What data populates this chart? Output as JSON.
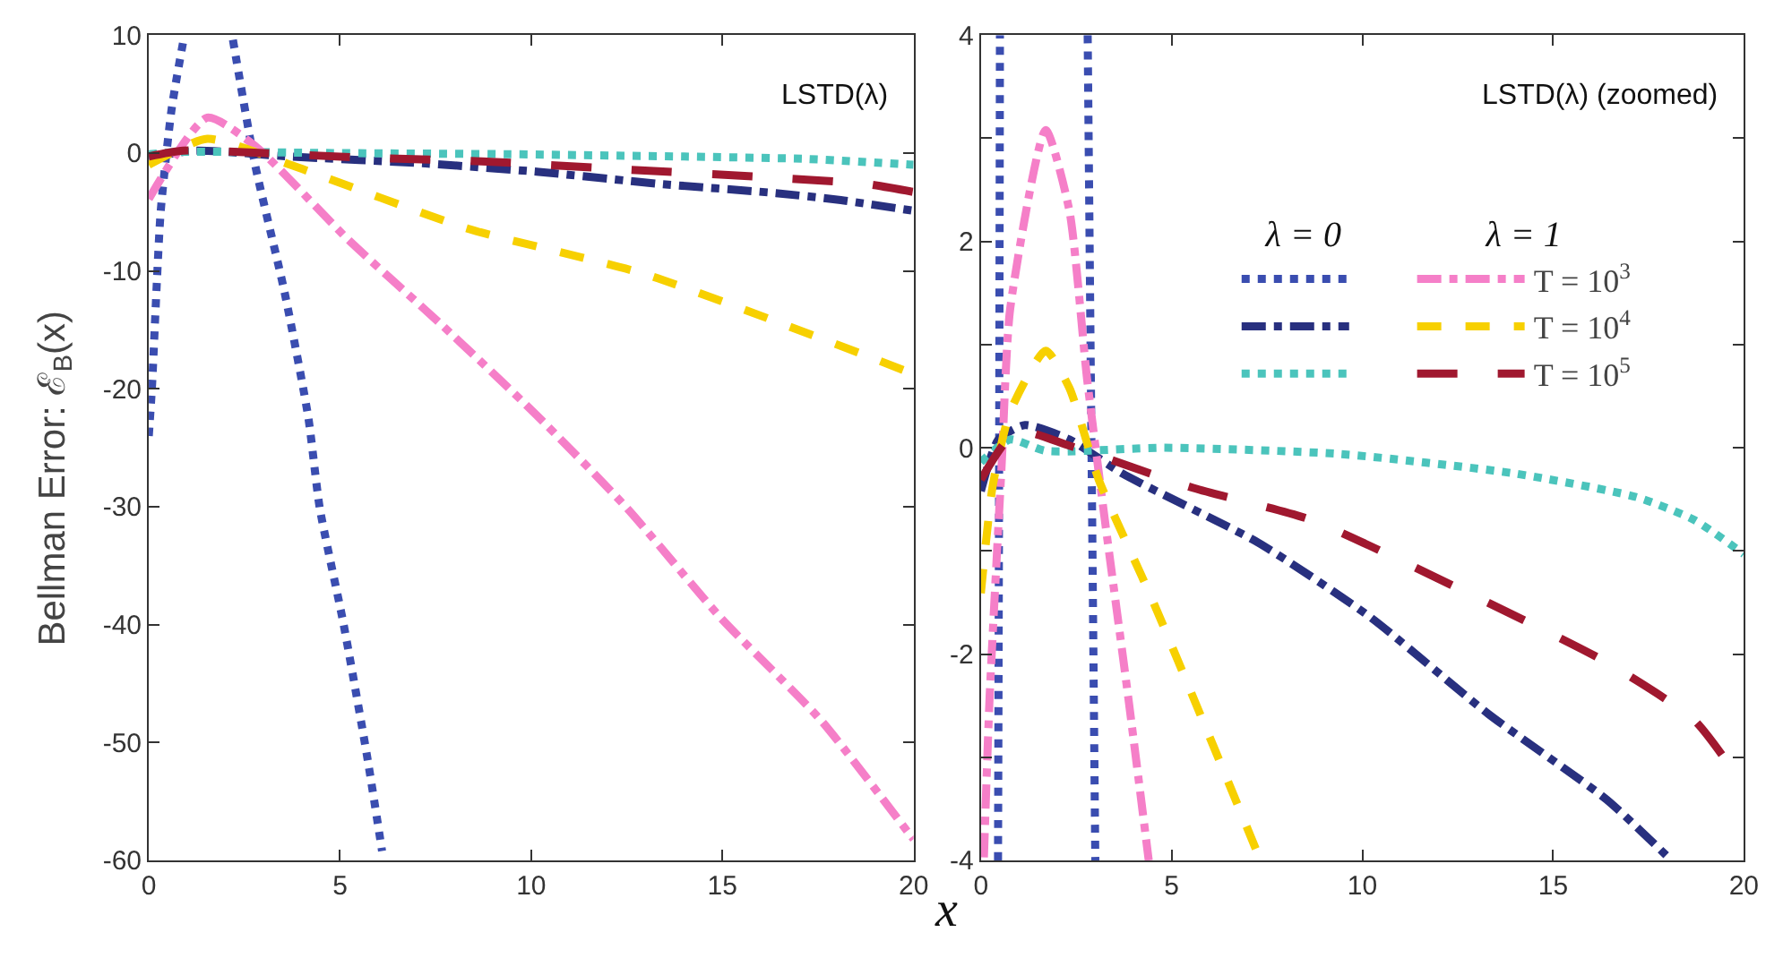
{
  "chart_data": [
    {
      "type": "line",
      "ylabel": "Bellman Error: ℰ$_{B}$(x)",
      "xlabel": "x",
      "annotations": [
        "LSTD(λ)"
      ],
      "xlim": [
        0,
        20
      ],
      "xticks": [
        0,
        5,
        10,
        15,
        20
      ],
      "ylim": [
        -60,
        10
      ],
      "yticks": [
        -60,
        -50,
        -40,
        -30,
        -20,
        -10,
        0,
        10
      ],
      "legend": false,
      "marker": "none",
      "series": [
        {
          "color": "#3a4db0",
          "line_style": "dotted",
          "x": [
            0,
            0.08,
            0.31,
            0.6,
            0.93,
            1.5,
            2.2,
            2.78,
            3.55,
            4.17,
            4.47,
            5.09,
            5.7,
            6.1
          ],
          "values": [
            -24,
            -20,
            -5,
            3.8,
            10,
            null,
            9.6,
            -1,
            -11.8,
            -22.4,
            -30.1,
            -39.9,
            -51,
            -59.2
          ]
        },
        {
          "color": "#28307f",
          "line_style": "dashdot",
          "x": [
            0,
            1.2,
            3.7,
            7.3,
            10.2,
            13.3,
            16.4,
            18.1,
            20
          ],
          "values": [
            -0.4,
            0.2,
            -0.3,
            -0.9,
            -1.6,
            -2.6,
            -3.4,
            -4,
            -4.9
          ]
        },
        {
          "color": "#4bc4bc",
          "line_style": "dotted",
          "x": [
            0,
            0.8,
            4.8,
            9.4,
            14,
            17.2,
            20
          ],
          "values": [
            -0.1,
            0.1,
            0,
            -0.1,
            -0.3,
            -0.5,
            -1
          ]
        },
        {
          "color": "#f57fc8",
          "line_style": "dashdot",
          "x": [
            0,
            1.53,
            2.78,
            5.23,
            7.7,
            10.1,
            12.5,
            14.95,
            17.6,
            19.9,
            20
          ],
          "values": [
            -3.9,
            3,
            0.6,
            -7.4,
            -14.7,
            -22.1,
            -30.1,
            -39.4,
            -48.2,
            -57.8,
            -58.2
          ]
        },
        {
          "color": "#f7d000",
          "line_style": "dashed",
          "x": [
            0,
            1.53,
            3.7,
            8.33,
            13,
            19.8,
            20
          ],
          "values": [
            -1,
            1.2,
            -1,
            -6.4,
            -10.3,
            -18.5,
            -18.8
          ]
        },
        {
          "color": "#a0182f",
          "line_style": "longdash",
          "x": [
            0,
            0.9,
            5.6,
            8.7,
            12.5,
            16.4,
            18.7,
            20
          ],
          "values": [
            -0.3,
            0.2,
            -0.4,
            -0.7,
            -1.4,
            -2.1,
            -2.6,
            -3.3
          ]
        }
      ]
    },
    {
      "type": "line",
      "annotations": [
        "LSTD(λ) (zoomed)",
        "λ = 0",
        "λ = 1"
      ],
      "xlim": [
        0,
        20
      ],
      "xticks": [
        0,
        5,
        10,
        15,
        20
      ],
      "ylim": [
        -4,
        4
      ],
      "yticks": [
        -4,
        {
          "value": -3,
          "label": null
        },
        -2,
        {
          "value": -1,
          "label": null
        },
        0,
        {
          "value": 1,
          "label": null
        },
        2,
        {
          "value": 3,
          "label": null
        },
        4
      ],
      "legend": "top right",
      "marker": "none",
      "series": [
        {
          "color": "#3a4db0",
          "line_style": "dotted",
          "x": [
            0.45,
            0.48,
            0.5,
            1.5,
            2.8,
            2.9,
            3.0
          ],
          "values": [
            -4,
            0,
            4,
            null,
            4,
            0,
            -4
          ]
        },
        {
          "color": "#28307f",
          "line_style": "dashdot",
          "x": [
            0,
            0.46,
            1.16,
            2.32,
            3.71,
            7.27,
            10.2,
            13.3,
            16.4,
            18.1
          ],
          "values": [
            -0.42,
            0.08,
            0.22,
            0.08,
            -0.25,
            -0.92,
            -1.64,
            -2.58,
            -3.41,
            -4
          ]
        },
        {
          "color": "#4bc4bc",
          "line_style": "dotted",
          "x": [
            0,
            0.77,
            1.7,
            4.8,
            9.4,
            14,
            17.2,
            18.7,
            20
          ],
          "values": [
            -0.14,
            0.08,
            -0.03,
            0,
            -0.06,
            -0.25,
            -0.48,
            -0.7,
            -1.03
          ]
        },
        {
          "name": "T = 10$^{3}$",
          "color": "#f57fc8",
          "line_style": "dashdot",
          "x": [
            0.08,
            0.23,
            0.54,
            0.77,
            1.7,
            2.32,
            2.78,
            3.25,
            3.86,
            4.4
          ],
          "values": [
            -3.97,
            -2.41,
            -0.2,
            1.35,
            3.08,
            2.3,
            0.68,
            -0.7,
            -2.41,
            -4
          ]
        },
        {
          "name": "T = 10$^{4}$",
          "color": "#f7d000",
          "line_style": "dashed",
          "x": [
            0,
            0.31,
            0.77,
            1.7,
            2.32,
            3.09,
            4.49,
            5.88,
            7.33
          ],
          "values": [
            -1.41,
            -0.37,
            0.35,
            0.94,
            0.58,
            -0.31,
            -1.47,
            -2.7,
            -4
          ]
        },
        {
          "name": "T = 10$^{5}$",
          "color": "#a0182f",
          "line_style": "longdash",
          "x": [
            0,
            0.93,
            2.32,
            5.57,
            8.66,
            12.5,
            16.4,
            18.7,
            20
          ],
          "values": [
            -0.31,
            0.16,
            0.02,
            -0.39,
            -0.7,
            -1.36,
            -2.08,
            -2.64,
            -3.28
          ]
        }
      ]
    }
  ]
}
